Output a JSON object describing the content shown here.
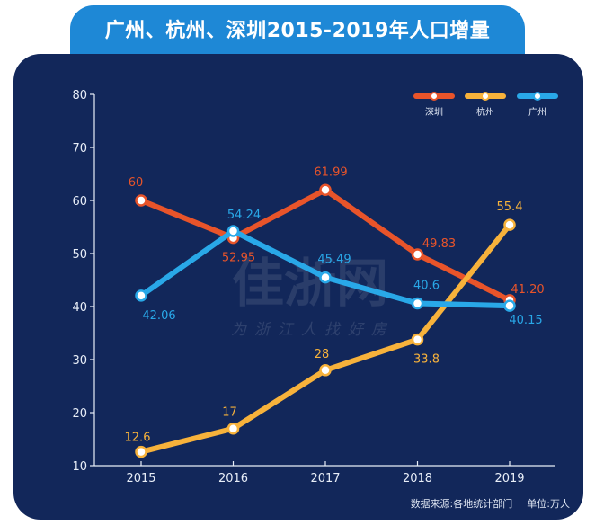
{
  "title": "广州、杭州、深圳2015-2019年人口增量",
  "footer": {
    "source": "数据来源:各地统计部门",
    "unit": "单位:万人"
  },
  "watermark": {
    "main": "佳浙网",
    "sub": "为浙江人找好房"
  },
  "colors": {
    "shenzhen": "#e8542a",
    "hangzhou": "#f7b23b",
    "guangzhou": "#29a8e8",
    "background": "#12275a",
    "banner": "#1e88d6"
  },
  "chart_data": {
    "type": "line",
    "title": "广州、杭州、深圳2015-2019年人口增量",
    "categories": [
      "2015",
      "2016",
      "2017",
      "2018",
      "2019"
    ],
    "ylim": [
      10,
      80
    ],
    "yticks": [
      "10",
      "20",
      "30",
      "40",
      "50",
      "60",
      "70",
      "80"
    ],
    "grid": false,
    "legend_position": "top-right",
    "series": [
      {
        "name": "深圳",
        "color": "#e8542a",
        "values": [
          60,
          52.95,
          61.99,
          49.83,
          41.2
        ],
        "labels": [
          "60",
          "52.95",
          "61.99",
          "49.83",
          "41.20"
        ]
      },
      {
        "name": "杭州",
        "color": "#f7b23b",
        "values": [
          12.6,
          17,
          28,
          33.8,
          55.4
        ],
        "labels": [
          "12.6",
          "17",
          "28",
          "33.8",
          "55.4"
        ]
      },
      {
        "name": "广州",
        "color": "#29a8e8",
        "values": [
          42.06,
          54.24,
          45.49,
          40.6,
          40.15
        ],
        "labels": [
          "42.06",
          "54.24",
          "45.49",
          "40.6",
          "40.15"
        ]
      }
    ]
  }
}
